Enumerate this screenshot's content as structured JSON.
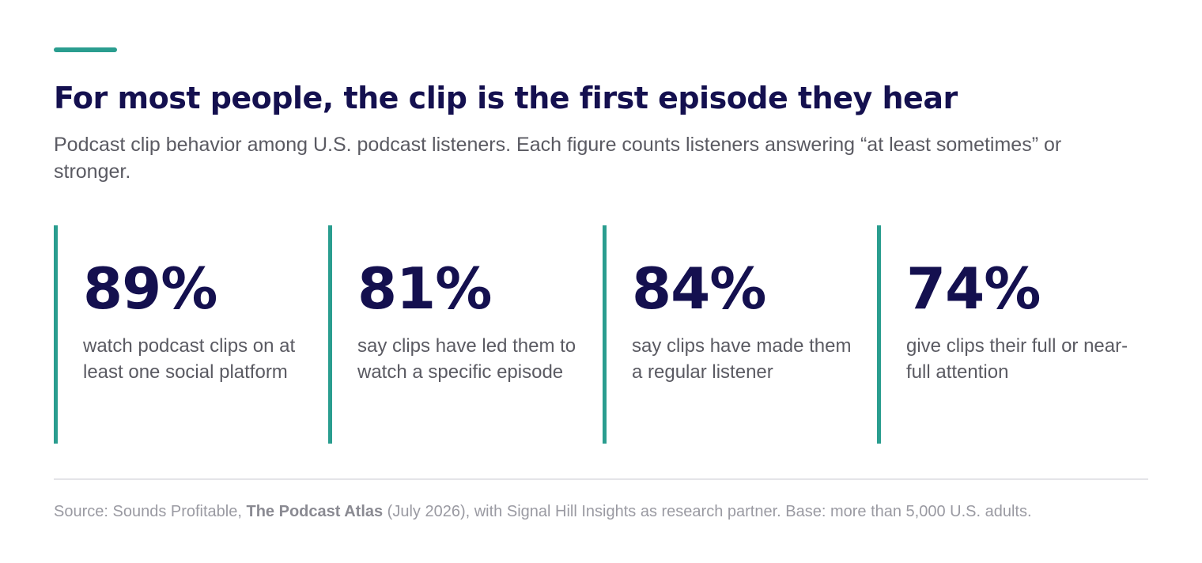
{
  "accent_color": "#2a9d8f",
  "title": "For most people, the clip is the first episode they hear",
  "subtitle": "Podcast clip behavior among U.S. podcast listeners. Each figure counts listeners answering “at least sometimes” or stronger.",
  "stats": [
    {
      "value": "89%",
      "label": "watch podcast clips on at least one social platform"
    },
    {
      "value": "81%",
      "label": "say clips have led them to watch a specific episode"
    },
    {
      "value": "84%",
      "label": "say clips have made them a regular listener"
    },
    {
      "value": "74%",
      "label": "give clips their full or near-full attention"
    }
  ],
  "source": {
    "prefix": "Source: Sounds Profitable, ",
    "publication": "The Podcast Atlas",
    "suffix": " (July 2026), with Signal Hill Insights as research partner. Base: more than 5,000 U.S. adults."
  }
}
